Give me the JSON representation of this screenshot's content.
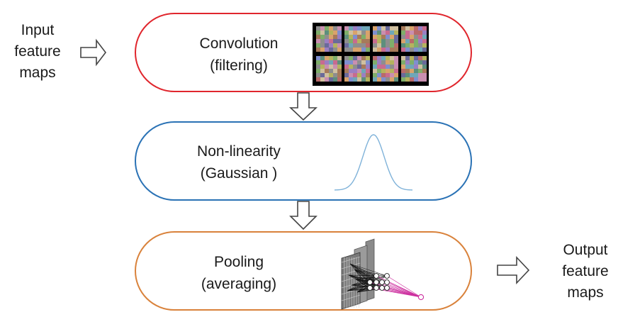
{
  "input": {
    "lines": [
      "Input",
      "feature",
      "maps"
    ]
  },
  "output": {
    "lines": [
      "Output",
      "feature",
      "maps"
    ]
  },
  "stages": [
    {
      "id": "convolution",
      "lines": [
        "Convolution",
        "(filtering)"
      ],
      "border_color": "#e0262d",
      "illustration": "filter-bank-grid"
    },
    {
      "id": "non-linearity",
      "lines": [
        "Non-linearity",
        "(Gaussian )"
      ],
      "border_color": "#2a72b5",
      "illustration": "gaussian-curve"
    },
    {
      "id": "pooling",
      "lines": [
        "Pooling",
        "(averaging)"
      ],
      "border_color": "#d9823b",
      "illustration": "pooling-network"
    }
  ],
  "colors": {
    "curve": "#7fb2d9",
    "pool_lines": "#cc2e9e"
  }
}
